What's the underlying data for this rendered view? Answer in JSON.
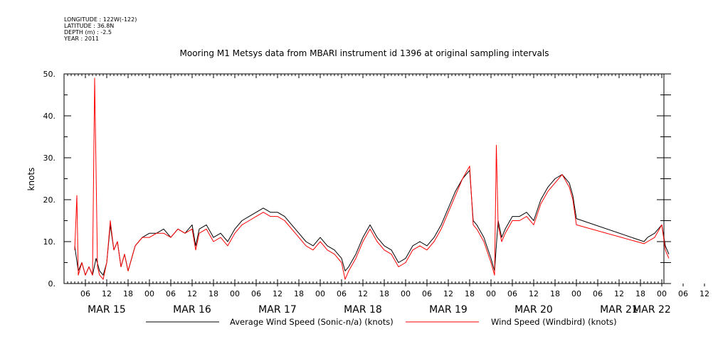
{
  "meta": [
    "LONGITUDE : 122W(-122)",
    "LATITUDE : 36.8N",
    "DEPTH (m) : -2.5",
    "YEAR : 2011"
  ],
  "colors": {
    "black_series": "#000000",
    "red_series": "#ff0000"
  },
  "chart_data": {
    "type": "line",
    "title": "Mooring M1 Metsys data from MBARI instrument id 1396 at original sampling intervals",
    "xlabel": "",
    "ylabel": "knots",
    "ylim": [
      0,
      50
    ],
    "yticks": [
      "0.",
      "10.",
      "20.",
      "30.",
      "40.",
      "50."
    ],
    "hour_ticks": [
      "06",
      "12",
      "18",
      "00",
      "06",
      "12",
      "18",
      "00",
      "06",
      "12",
      "18",
      "00",
      "06",
      "12",
      "18",
      "00",
      "06",
      "12",
      "18",
      "00",
      "06",
      "12",
      "18",
      "00",
      "06",
      "12",
      "18",
      "00",
      "06",
      "12",
      "18",
      "00",
      "06"
    ],
    "day_labels": [
      "MAR 15",
      "MAR 16",
      "MAR 17",
      "MAR 18",
      "MAR 19",
      "MAR 20",
      "MAR 21",
      "MAR 22"
    ],
    "x_unit": "hours since MAR 15 00:00",
    "xlim": [
      2.5,
      170
    ],
    "grid": false,
    "legend_position": "bottom",
    "series": [
      {
        "name": "Average Wind Speed (Sonic-n/a) (knots)",
        "color": "#000000",
        "points": [
          [
            3,
            9
          ],
          [
            4,
            3
          ],
          [
            5,
            5
          ],
          [
            6,
            2
          ],
          [
            7,
            4
          ],
          [
            8,
            2
          ],
          [
            9,
            6
          ],
          [
            10,
            3
          ],
          [
            11,
            2
          ],
          [
            12,
            5
          ],
          [
            13,
            14
          ],
          [
            14,
            8
          ],
          [
            15,
            10
          ],
          [
            16,
            4
          ],
          [
            17,
            7
          ],
          [
            18,
            3
          ],
          [
            19,
            6
          ],
          [
            20,
            9
          ],
          [
            21,
            10
          ],
          [
            22,
            11
          ],
          [
            24,
            12
          ],
          [
            26,
            12
          ],
          [
            28,
            13
          ],
          [
            30,
            11
          ],
          [
            32,
            13
          ],
          [
            34,
            12
          ],
          [
            36,
            14
          ],
          [
            37,
            9
          ],
          [
            38,
            13
          ],
          [
            40,
            14
          ],
          [
            42,
            11
          ],
          [
            44,
            12
          ],
          [
            46,
            10
          ],
          [
            48,
            13
          ],
          [
            50,
            15
          ],
          [
            52,
            16
          ],
          [
            54,
            17
          ],
          [
            56,
            18
          ],
          [
            58,
            17
          ],
          [
            60,
            17
          ],
          [
            62,
            16
          ],
          [
            64,
            14
          ],
          [
            66,
            12
          ],
          [
            68,
            10
          ],
          [
            70,
            9
          ],
          [
            72,
            11
          ],
          [
            74,
            9
          ],
          [
            76,
            8
          ],
          [
            78,
            6
          ],
          [
            79,
            3
          ],
          [
            80,
            4
          ],
          [
            82,
            7
          ],
          [
            84,
            11
          ],
          [
            86,
            14
          ],
          [
            88,
            11
          ],
          [
            90,
            9
          ],
          [
            92,
            8
          ],
          [
            94,
            5
          ],
          [
            96,
            6
          ],
          [
            98,
            9
          ],
          [
            100,
            10
          ],
          [
            102,
            9
          ],
          [
            104,
            11
          ],
          [
            106,
            14
          ],
          [
            108,
            18
          ],
          [
            110,
            22
          ],
          [
            112,
            25
          ],
          [
            114,
            27
          ],
          [
            115,
            15
          ],
          [
            116,
            14
          ],
          [
            118,
            11
          ],
          [
            120,
            6
          ],
          [
            121,
            3
          ],
          [
            122,
            15
          ],
          [
            123,
            11
          ],
          [
            124,
            13
          ],
          [
            126,
            16
          ],
          [
            128,
            16
          ],
          [
            130,
            17
          ],
          [
            132,
            15
          ],
          [
            134,
            20
          ],
          [
            136,
            23
          ],
          [
            138,
            25
          ],
          [
            140,
            26
          ],
          [
            142,
            24
          ],
          [
            143,
            21
          ],
          [
            144,
            15.5
          ],
          [
            163,
            10
          ],
          [
            164,
            11
          ],
          [
            166,
            12
          ],
          [
            168,
            14
          ],
          [
            169,
            9
          ],
          [
            170,
            7
          ]
        ]
      },
      {
        "name": "Wind Speed (Windbird) (knots)",
        "color": "#ff0000",
        "points": [
          [
            3,
            8
          ],
          [
            3.6,
            21
          ],
          [
            4,
            2
          ],
          [
            5,
            5
          ],
          [
            6,
            2
          ],
          [
            7,
            4
          ],
          [
            8,
            2
          ],
          [
            8.6,
            49
          ],
          [
            9,
            27
          ],
          [
            9.4,
            4
          ],
          [
            10,
            2
          ],
          [
            11,
            1
          ],
          [
            12,
            5
          ],
          [
            13,
            15
          ],
          [
            14,
            8
          ],
          [
            15,
            10
          ],
          [
            16,
            4
          ],
          [
            17,
            7
          ],
          [
            18,
            3
          ],
          [
            19,
            6
          ],
          [
            20,
            9
          ],
          [
            21,
            10
          ],
          [
            22,
            11
          ],
          [
            24,
            11
          ],
          [
            26,
            12
          ],
          [
            28,
            12
          ],
          [
            30,
            11
          ],
          [
            32,
            13
          ],
          [
            34,
            12
          ],
          [
            36,
            13
          ],
          [
            37,
            8
          ],
          [
            38,
            12
          ],
          [
            40,
            13
          ],
          [
            42,
            10
          ],
          [
            44,
            11
          ],
          [
            46,
            9
          ],
          [
            48,
            12
          ],
          [
            50,
            14
          ],
          [
            52,
            15
          ],
          [
            54,
            16
          ],
          [
            56,
            17
          ],
          [
            58,
            16
          ],
          [
            60,
            16
          ],
          [
            62,
            15
          ],
          [
            64,
            13
          ],
          [
            66,
            11
          ],
          [
            68,
            9
          ],
          [
            70,
            8
          ],
          [
            72,
            10
          ],
          [
            74,
            8
          ],
          [
            76,
            7
          ],
          [
            78,
            5
          ],
          [
            79,
            1
          ],
          [
            80,
            3
          ],
          [
            82,
            6
          ],
          [
            84,
            10
          ],
          [
            86,
            13
          ],
          [
            88,
            10
          ],
          [
            90,
            8
          ],
          [
            92,
            7
          ],
          [
            94,
            4
          ],
          [
            96,
            5
          ],
          [
            98,
            8
          ],
          [
            100,
            9
          ],
          [
            102,
            8
          ],
          [
            104,
            10
          ],
          [
            106,
            13
          ],
          [
            108,
            17
          ],
          [
            110,
            21
          ],
          [
            112,
            25
          ],
          [
            114,
            28
          ],
          [
            115,
            14
          ],
          [
            116,
            13
          ],
          [
            118,
            10
          ],
          [
            120,
            5
          ],
          [
            121,
            2
          ],
          [
            121.5,
            33
          ],
          [
            122,
            14
          ],
          [
            123,
            10
          ],
          [
            124,
            12
          ],
          [
            126,
            15
          ],
          [
            128,
            15
          ],
          [
            130,
            16
          ],
          [
            132,
            14
          ],
          [
            134,
            19
          ],
          [
            136,
            22
          ],
          [
            138,
            24
          ],
          [
            140,
            26
          ],
          [
            142,
            23
          ],
          [
            143,
            20
          ],
          [
            144,
            14
          ],
          [
            163,
            9.5
          ],
          [
            164,
            10
          ],
          [
            166,
            11
          ],
          [
            168,
            14
          ],
          [
            169,
            8
          ],
          [
            170,
            6
          ]
        ]
      }
    ]
  }
}
